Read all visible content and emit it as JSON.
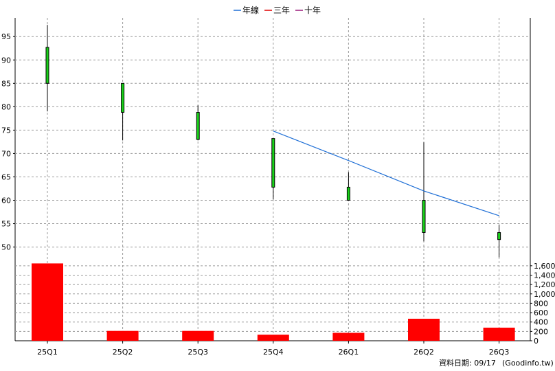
{
  "chart_data": [
    {
      "type": "candlestick",
      "categories": [
        "25Q1",
        "25Q2",
        "25Q3",
        "25Q4",
        "26Q1",
        "26Q2",
        "26Q3"
      ],
      "ohlc": [
        {
          "open": 92.7,
          "high": 97.5,
          "low": 79.0,
          "close": 85.0
        },
        {
          "open": 85.0,
          "high": 85.0,
          "low": 72.8,
          "close": 78.8
        },
        {
          "open": 78.8,
          "high": 80.3,
          "low": 72.8,
          "close": 73.0
        },
        {
          "open": 73.2,
          "high": 73.2,
          "low": 60.2,
          "close": 62.8
        },
        {
          "open": 62.8,
          "high": 66.0,
          "low": 59.9,
          "close": 60.0
        },
        {
          "open": 60.0,
          "high": 72.4,
          "low": 51.2,
          "close": 53.1
        },
        {
          "open": 53.1,
          "high": 54.7,
          "low": 47.8,
          "close": 51.6
        }
      ],
      "moving_averages": [
        {
          "name": "年線",
          "color": "#1f6fd6",
          "values": [
            null,
            null,
            null,
            74.8,
            68.5,
            62.0,
            56.7
          ]
        },
        {
          "name": "三年",
          "color": "#e00000",
          "values": []
        },
        {
          "name": "十年",
          "color": "#9a1a7a",
          "values": []
        }
      ],
      "candle_color": "#19d119",
      "ylim": [
        47,
        99
      ],
      "yticks": [
        50,
        55,
        60,
        65,
        70,
        75,
        80,
        85,
        90,
        95
      ],
      "grid": true,
      "legend": "top-center"
    },
    {
      "type": "bar",
      "categories": [
        "25Q1",
        "25Q2",
        "25Q3",
        "25Q4",
        "26Q1",
        "26Q2",
        "26Q3"
      ],
      "values": [
        1650,
        210,
        210,
        130,
        170,
        470,
        280
      ],
      "color": "#ff0000",
      "ylim": [
        0,
        1700
      ],
      "yticks": [
        0,
        200,
        400,
        600,
        800,
        1000,
        1200,
        1400,
        1600
      ],
      "ytick_labels": [
        "0",
        "200",
        "400",
        "600",
        "800",
        "1,000",
        "1,200",
        "1,400",
        "1,600"
      ],
      "grid": true
    }
  ],
  "footer": {
    "date_label": "資料日期: 09/17",
    "source": "(Goodinfo.tw)"
  }
}
